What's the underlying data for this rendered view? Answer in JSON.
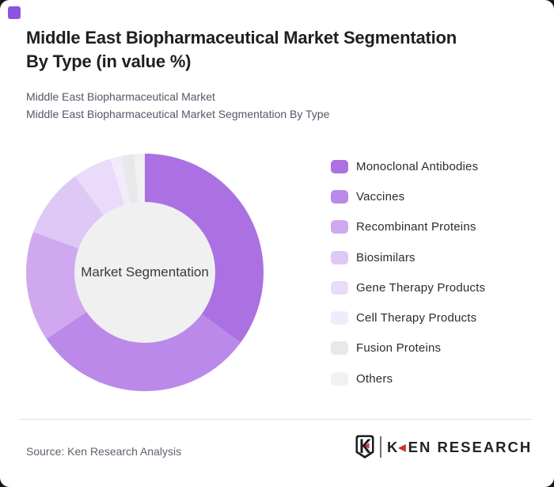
{
  "page": {
    "background_color": "#18181a",
    "card_background_color": "#ffffff"
  },
  "brand": {
    "accent_square_color": "#8c52e0"
  },
  "header": {
    "title_line1": "Middle East Biopharmaceutical Market Segmentation",
    "title_line2": "By Type (in value %)",
    "subtitle_line1": "Middle East Biopharmaceutical Market",
    "subtitle_line2": "Middle East Biopharmaceutical Market Segmentation By Type"
  },
  "chart_data": {
    "type": "pie",
    "variant": "donut",
    "title": "Middle East Biopharmaceutical Market Segmentation By Type (in value %)",
    "categories": [
      "Monoclonal Antibodies",
      "Vaccines",
      "Recombinant Proteins",
      "Biosimilars",
      "Gene Therapy Products",
      "Cell Therapy Products",
      "Fusion Proteins",
      "Others"
    ],
    "values": [
      35,
      30.5,
      15,
      9.5,
      5.3,
      1.5,
      1.7,
      1.5
    ],
    "unit": "%",
    "colors": [
      "#ab70e2",
      "#ba89e9",
      "#cfa8f0",
      "#dec8f5",
      "#e9dbf9",
      "#f2ebfb",
      "#e8e7ea",
      "#f1f0f2"
    ],
    "center_label": "Market Segmentation",
    "inner_hole_color": "#f0f0f0",
    "start_angle_deg": 0,
    "direction": "clockwise",
    "legend_position": "right",
    "value_labels_shown": false
  },
  "footer": {
    "source_text": "Source: Ken Research Analysis",
    "logo": {
      "k": "K",
      "arrow": "◀",
      "rest": "EN RESEARCH",
      "red_color": "#cd3238",
      "black_color": "#232327"
    }
  }
}
